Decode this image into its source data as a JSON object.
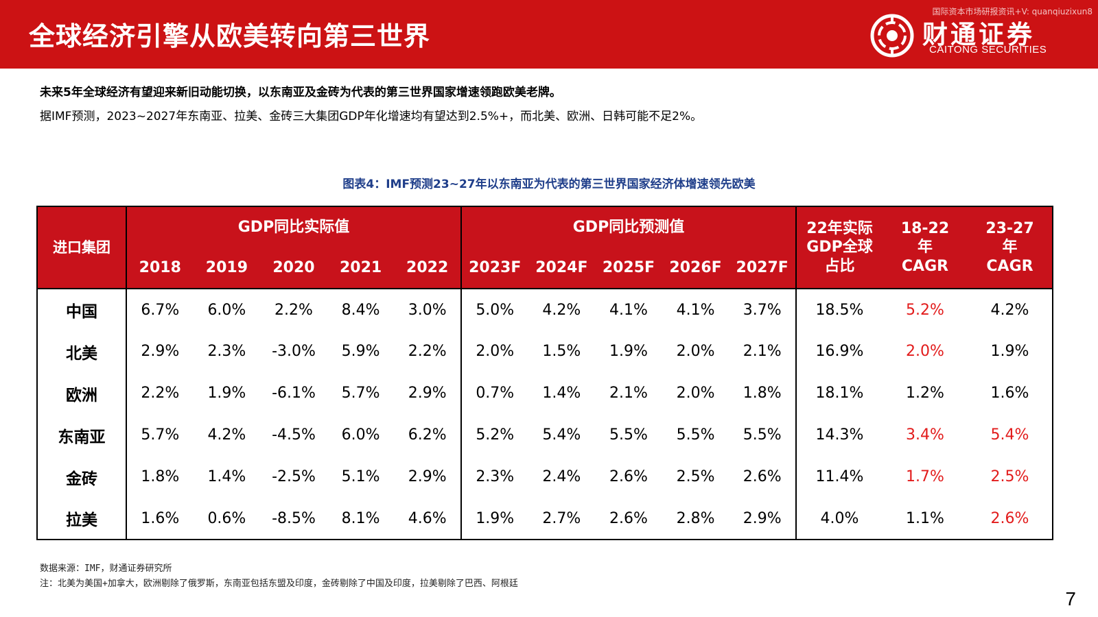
{
  "header": {
    "title": "全球经济引擎从欧美转向第三世界",
    "watermark": "国际资本市场研报资讯+V: quanqiuzixun8",
    "logo_cn": "财通证券",
    "logo_en": "CAITONG SECURITIES"
  },
  "intro": {
    "line1": "未来5年全球经济有望迎来新旧动能切换，以东南亚及金砖为代表的第三世界国家增速领跑欧美老牌。",
    "line2": "据IMF预测，2023~2027年东南亚、拉美、金砖三大集团GDP年化增速均有望达到2.5%+，而北美、欧洲、日韩可能不足2%。"
  },
  "table": {
    "caption": "图表4：IMF预测23~27年以东南亚为代表的第三世界国家经济体增速领先欧美",
    "group_header": "进口集团",
    "actual_header": "GDP同比实际值",
    "forecast_header": "GDP同比预测值",
    "share_header": "22年实际GDP全球占比",
    "cagr1_header": "18-22年CAGR",
    "cagr2_header": "23-27年CAGR",
    "years": [
      "2018",
      "2019",
      "2020",
      "2021",
      "2022",
      "2023F",
      "2024F",
      "2025F",
      "2026F",
      "2027F"
    ],
    "rows": [
      {
        "name": "中国",
        "values": [
          "6.7%",
          "6.0%",
          "2.2%",
          "8.4%",
          "3.0%",
          "5.0%",
          "4.2%",
          "4.1%",
          "4.1%",
          "3.7%"
        ],
        "share": "18.5%",
        "cagr1": "5.2%",
        "cagr2": "4.2%"
      },
      {
        "name": "北美",
        "values": [
          "2.9%",
          "2.3%",
          "-3.0%",
          "5.9%",
          "2.2%",
          "2.0%",
          "1.5%",
          "1.9%",
          "2.0%",
          "2.1%"
        ],
        "share": "16.9%",
        "cagr1": "2.0%",
        "cagr2": "1.9%"
      },
      {
        "name": "欧洲",
        "values": [
          "2.2%",
          "1.9%",
          "-6.1%",
          "5.7%",
          "2.9%",
          "0.7%",
          "1.4%",
          "2.1%",
          "2.0%",
          "1.8%"
        ],
        "share": "18.1%",
        "cagr1": "1.2%",
        "cagr2": "1.6%"
      },
      {
        "name": "东南亚",
        "values": [
          "5.7%",
          "4.2%",
          "-4.5%",
          "6.0%",
          "6.2%",
          "5.2%",
          "5.4%",
          "5.5%",
          "5.5%",
          "5.5%"
        ],
        "share": "14.3%",
        "cagr1": "3.4%",
        "cagr2": "5.4%"
      },
      {
        "name": "金砖",
        "values": [
          "1.8%",
          "1.4%",
          "-2.5%",
          "5.1%",
          "2.9%",
          "2.3%",
          "2.4%",
          "2.6%",
          "2.5%",
          "2.6%"
        ],
        "share": "11.4%",
        "cagr1": "1.7%",
        "cagr2": "2.5%"
      },
      {
        "name": "拉美",
        "values": [
          "1.6%",
          "0.6%",
          "-8.5%",
          "8.1%",
          "4.6%",
          "1.9%",
          "2.7%",
          "2.6%",
          "2.8%",
          "2.9%"
        ],
        "share": "4.0%",
        "cagr1": "1.1%",
        "cagr2": "2.6%"
      }
    ],
    "highlight_color": "#e21b1b"
  },
  "footer": {
    "source": "数据来源：IMF，财通证券研究所",
    "note": "注：北美为美国+加拿大，欧洲剔除了俄罗斯，东南亚包括东盟及印度，金砖剔除了中国及印度，拉美剔除了巴西、阿根廷",
    "page": "7"
  },
  "colors": {
    "banner": "#cc1214",
    "caption": "#1f3e8a"
  }
}
